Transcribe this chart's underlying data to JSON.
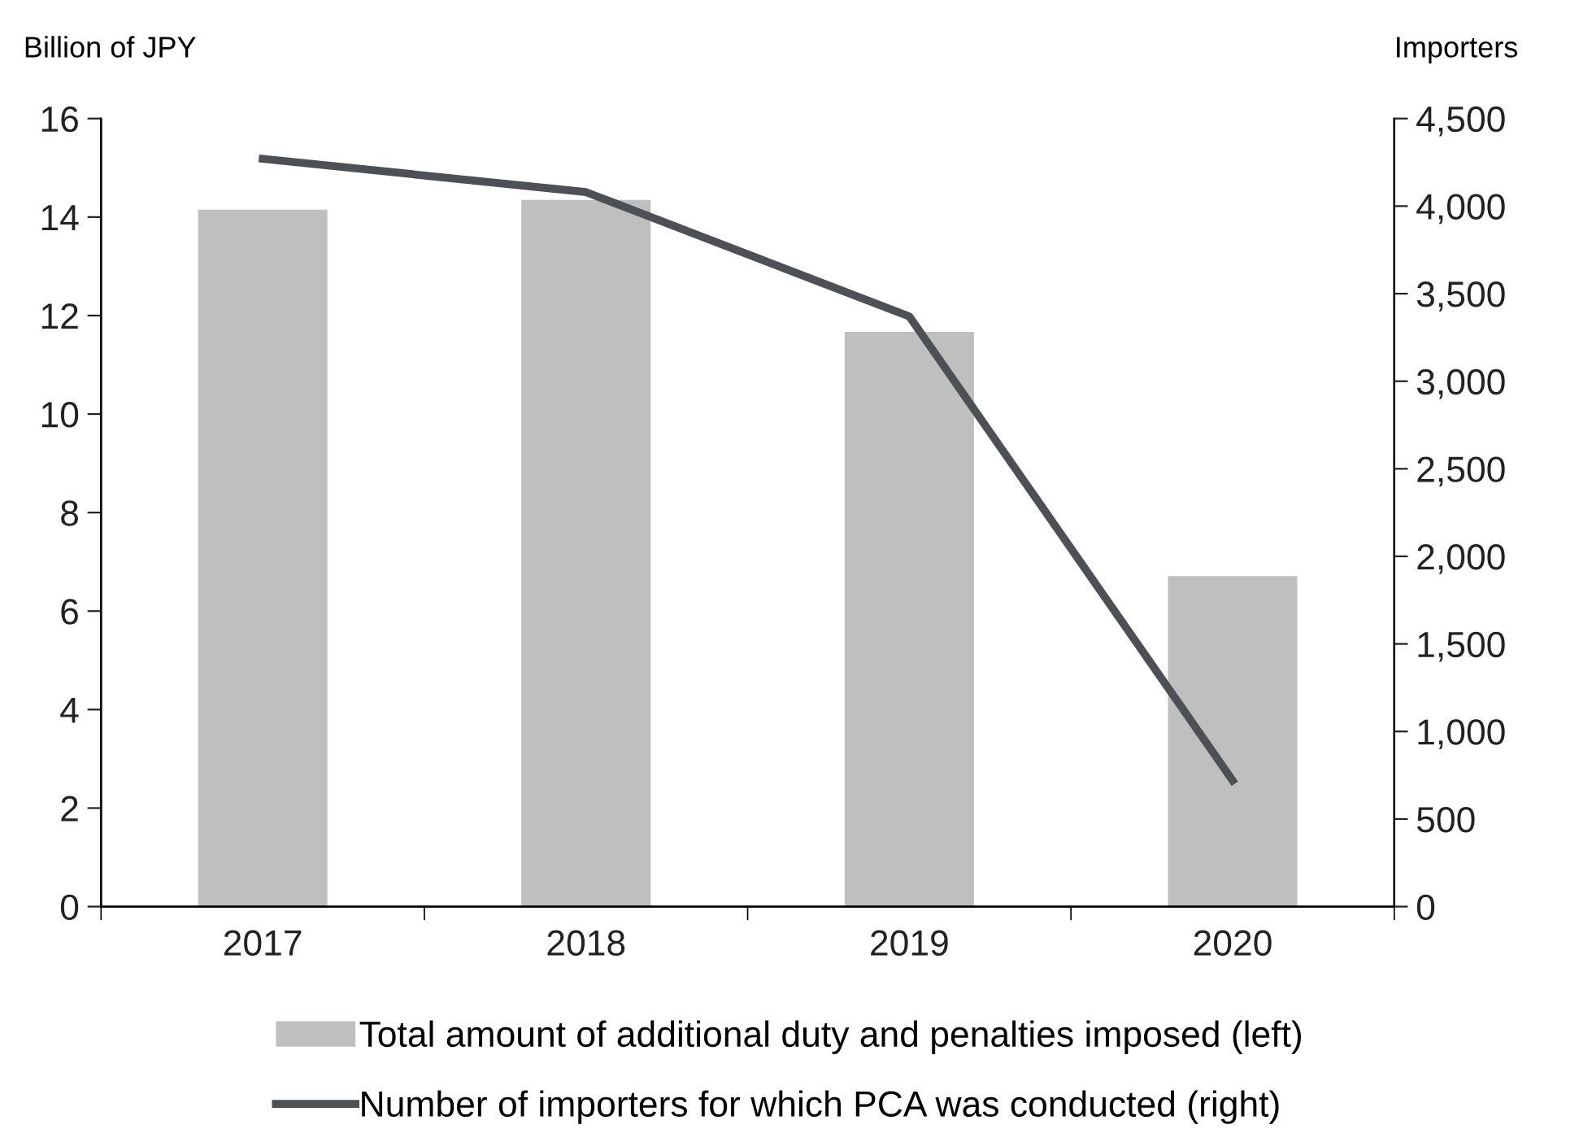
{
  "chart_data": {
    "type": "bar",
    "ylabel": "Billion of JPY",
    "y2label": "Importers",
    "categories": [
      "2017",
      "2018",
      "2019",
      "2020"
    ],
    "series": [
      {
        "name": "Total amount of additional duty and penalties imposed (left)",
        "color": "#bfbfbf",
        "values": [
          14.15,
          14.35,
          11.67,
          6.71
        ]
      },
      {
        "name": "Number of importers for which PCA was conducted (right)",
        "type": "line",
        "axis": "y2",
        "color": "#4d5055",
        "values": [
          4270,
          4080,
          3370,
          720
        ]
      }
    ],
    "ylim": [
      0,
      16
    ],
    "yticks": [
      0,
      2,
      4,
      6,
      8,
      10,
      12,
      14,
      16
    ],
    "y2lim": [
      0,
      4500
    ],
    "y2ticks": [
      {
        "value": 0,
        "label": "0"
      },
      {
        "value": 500,
        "label": "500"
      },
      {
        "value": 1000,
        "label": "1,000"
      },
      {
        "value": 1500,
        "label": "1,500"
      },
      {
        "value": 2000,
        "label": "2,000"
      },
      {
        "value": 2500,
        "label": "2,500"
      },
      {
        "value": 3000,
        "label": "3,000"
      },
      {
        "value": 3500,
        "label": "3,500"
      },
      {
        "value": 4000,
        "label": "4,000"
      },
      {
        "value": 4500,
        "label": "4,500"
      }
    ],
    "grid": false,
    "legend": "bottom",
    "marker": "none",
    "line_style": "solid"
  }
}
